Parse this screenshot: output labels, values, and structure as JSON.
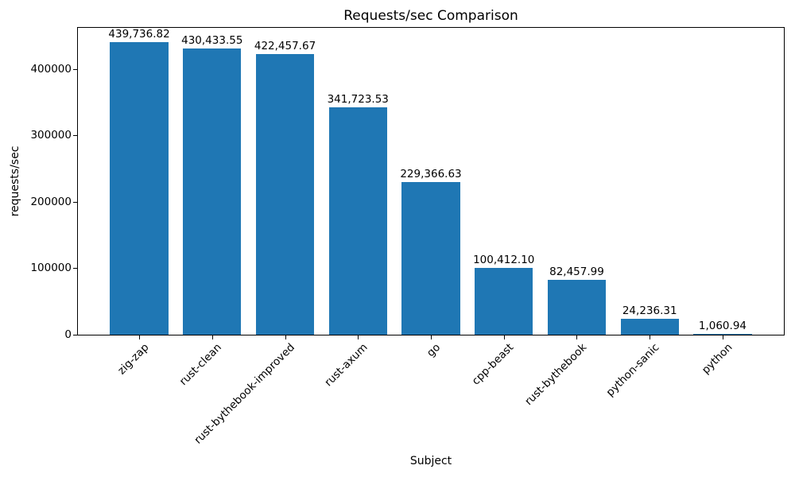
{
  "chart_data": {
    "type": "bar",
    "title": "Requests/sec Comparison",
    "xlabel": "Subject",
    "ylabel": "requests/sec",
    "categories": [
      "zig-zap",
      "rust-clean",
      "rust-bythebook-improved",
      "rust-axum",
      "go",
      "cpp-beast",
      "rust-bythebook",
      "python-sanic",
      "python"
    ],
    "values": [
      439736.82,
      430433.55,
      422457.67,
      341723.53,
      229366.63,
      100412.1,
      82457.99,
      24236.31,
      1060.94
    ],
    "bar_labels": [
      "439,736.82",
      "430,433.55",
      "422,457.67",
      "341,723.53",
      "229,366.63",
      "100,412.10",
      "82,457.99",
      "24,236.31",
      "1,060.94"
    ],
    "y_ticks": [
      0,
      100000,
      200000,
      300000,
      400000
    ],
    "y_tick_labels": [
      "0",
      "100000",
      "200000",
      "300000",
      "400000"
    ],
    "ylim": [
      0,
      461723.66
    ],
    "bar_color": "#1f77b4",
    "axis_color": "#000000",
    "background_color": "#ffffff",
    "grid": false,
    "legend": "none"
  }
}
